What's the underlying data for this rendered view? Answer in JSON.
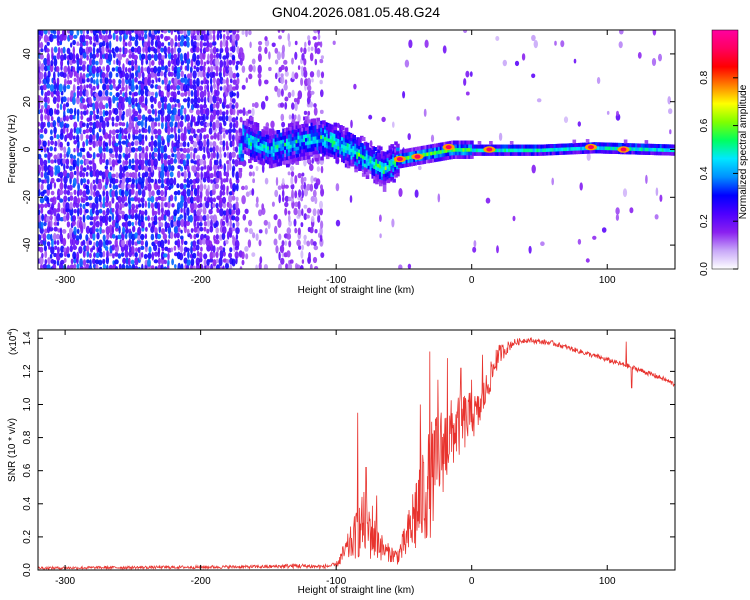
{
  "figure_title": "GN04.2026.081.05.48.G24",
  "chart_data": [
    {
      "type": "heatmap",
      "title": "GN04.2026.081.05.48.G24",
      "xlabel": "Height of straight line (km)",
      "ylabel": "Frequency (Hz)",
      "xlim": [
        -320,
        150
      ],
      "ylim": [
        -50,
        50
      ],
      "xticks": [
        -300,
        -200,
        -100,
        0,
        100
      ],
      "xtick_labels": [
        "-300",
        "-200",
        "-100",
        "0",
        "100"
      ],
      "yticks": [
        -40,
        -20,
        0,
        20,
        40
      ],
      "ytick_labels": [
        "-40",
        "-20",
        "0",
        "20",
        "40"
      ],
      "colorbar": {
        "label": "Normalized spectral amplitude",
        "range": [
          0,
          1
        ],
        "ticks": [
          0.0,
          0.2,
          0.4,
          0.6,
          0.8
        ],
        "tick_labels": [
          "0.0",
          "0.2",
          "0.4",
          "0.6",
          "0.8"
        ],
        "colors": [
          "#ffffff",
          "#c8a8f8",
          "#8a20f0",
          "#4d00ff",
          "#0000ff",
          "#0090ff",
          "#00e8ff",
          "#00ff60",
          "#80ff00",
          "#ffff00",
          "#ff8000",
          "#ff0000",
          "#ff0060",
          "#ff00a0"
        ]
      },
      "features": {
        "noise_region_km": [
          -320,
          -110
        ],
        "dense_noise_end_km": -172,
        "signal_onset_km": -172,
        "signal_ridge": [
          {
            "x": -170,
            "y": 5
          },
          {
            "x": -150,
            "y": 0
          },
          {
            "x": -130,
            "y": 3
          },
          {
            "x": -110,
            "y": 5
          },
          {
            "x": -90,
            "y": 0
          },
          {
            "x": -75,
            "y": -5
          },
          {
            "x": -65,
            "y": -8
          },
          {
            "x": -55,
            "y": -4
          },
          {
            "x": -35,
            "y": -2
          },
          {
            "x": -15,
            "y": 0
          },
          {
            "x": 0,
            "y": 0
          },
          {
            "x": 50,
            "y": 0
          },
          {
            "x": 90,
            "y": 1
          },
          {
            "x": 150,
            "y": 0
          }
        ],
        "peak_points": [
          {
            "x": -53,
            "y": -4
          },
          {
            "x": -40,
            "y": -3
          },
          {
            "x": -17,
            "y": 1
          },
          {
            "x": 13,
            "y": 0
          },
          {
            "x": 88,
            "y": 1
          },
          {
            "x": 112,
            "y": 0
          }
        ]
      }
    },
    {
      "type": "line",
      "xlabel": "Height of straight line (km)",
      "ylabel": "SNR (10 * v/v)",
      "y_multiplier_label": "(x10",
      "y_multiplier_exponent": "4",
      "y_multiplier_close": ")",
      "xlim": [
        -320,
        150
      ],
      "ylim": [
        0,
        1.45
      ],
      "xticks": [
        -300,
        -200,
        -100,
        0,
        100
      ],
      "xtick_labels": [
        "-300",
        "-200",
        "-100",
        "0",
        "100"
      ],
      "yticks": [
        0.0,
        0.2,
        0.4,
        0.6,
        0.8,
        1.0,
        1.2,
        1.4
      ],
      "ytick_labels": [
        "0.0",
        "0.2",
        "0.4",
        "0.6",
        "0.8",
        "1.0",
        "1.2",
        "1.4"
      ],
      "series": [
        {
          "name": "SNR",
          "color": "#e8332e",
          "envelope": [
            {
              "x": -320,
              "y": 0.012,
              "amp": 0.008
            },
            {
              "x": -150,
              "y": 0.02,
              "amp": 0.01
            },
            {
              "x": -130,
              "y": 0.025,
              "amp": 0.015
            },
            {
              "x": -110,
              "y": 0.02,
              "amp": 0.012
            },
            {
              "x": -100,
              "y": 0.03,
              "amp": 0.015
            },
            {
              "x": -90,
              "y": 0.15,
              "amp": 0.1
            },
            {
              "x": -80,
              "y": 0.28,
              "amp": 0.2
            },
            {
              "x": -72,
              "y": 0.22,
              "amp": 0.18
            },
            {
              "x": -65,
              "y": 0.12,
              "amp": 0.06
            },
            {
              "x": -55,
              "y": 0.08,
              "amp": 0.05
            },
            {
              "x": -48,
              "y": 0.18,
              "amp": 0.12
            },
            {
              "x": -40,
              "y": 0.38,
              "amp": 0.3
            },
            {
              "x": -30,
              "y": 0.55,
              "amp": 0.35
            },
            {
              "x": -22,
              "y": 0.72,
              "amp": 0.28
            },
            {
              "x": -12,
              "y": 0.85,
              "amp": 0.2
            },
            {
              "x": -5,
              "y": 0.9,
              "amp": 0.18
            },
            {
              "x": 5,
              "y": 0.95,
              "amp": 0.12
            },
            {
              "x": 12,
              "y": 1.12,
              "amp": 0.1
            },
            {
              "x": 20,
              "y": 1.3,
              "amp": 0.06
            },
            {
              "x": 30,
              "y": 1.37,
              "amp": 0.025
            },
            {
              "x": 40,
              "y": 1.39,
              "amp": 0.015
            },
            {
              "x": 60,
              "y": 1.37,
              "amp": 0.015
            },
            {
              "x": 80,
              "y": 1.32,
              "amp": 0.015
            },
            {
              "x": 100,
              "y": 1.27,
              "amp": 0.015
            },
            {
              "x": 120,
              "y": 1.22,
              "amp": 0.015
            },
            {
              "x": 140,
              "y": 1.16,
              "amp": 0.015
            },
            {
              "x": 150,
              "y": 1.12,
              "amp": 0.015
            }
          ],
          "spikes": [
            {
              "x": -84,
              "y": 0.95
            },
            {
              "x": -78,
              "y": 0.62
            },
            {
              "x": -70,
              "y": 0.45
            },
            {
              "x": -38,
              "y": 1.0
            },
            {
              "x": -31,
              "y": 1.32
            },
            {
              "x": -25,
              "y": 1.15
            },
            {
              "x": -18,
              "y": 1.28
            },
            {
              "x": -8,
              "y": 1.22
            },
            {
              "x": 0,
              "y": 1.15
            },
            {
              "x": 8,
              "y": 1.3
            },
            {
              "x": 18,
              "y": 1.33
            },
            {
              "x": 114,
              "y": 1.38
            },
            {
              "x": 118,
              "y": 1.1
            }
          ]
        }
      ]
    }
  ]
}
